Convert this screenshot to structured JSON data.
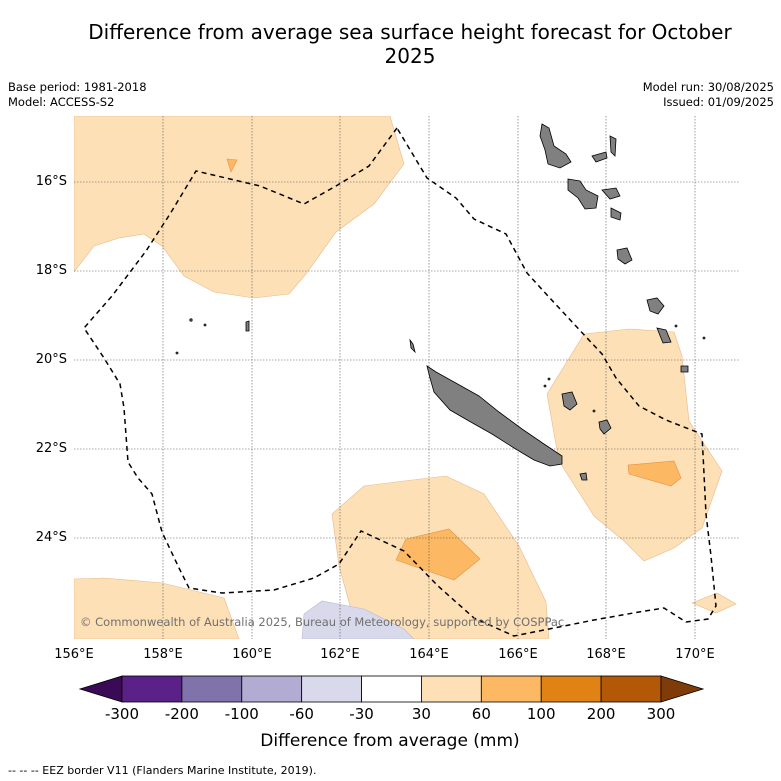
{
  "title": "Difference from average sea surface height forecast for October 2025",
  "info": {
    "base_period": "Base period: 1981-2018",
    "model": "Model: ACCESS-S2",
    "model_run": "Model run: 30/08/2025",
    "issued": "Issued: 01/09/2025"
  },
  "map": {
    "copyright": "© Commonwealth of Australia 2025, Bureau of Meteorology, supported by COSPPac",
    "lat_labels": [
      "16°S",
      "18°S",
      "20°S",
      "22°S",
      "24°S"
    ],
    "lon_labels": [
      "156°E",
      "158°E",
      "160°E",
      "162°E",
      "164°E",
      "166°E",
      "168°E",
      "170°E"
    ],
    "land_color": "#808080",
    "eez_line_style": "dashed black"
  },
  "colorbar": {
    "ticks": [
      "-300",
      "-200",
      "-100",
      "-60",
      "-30",
      "30",
      "60",
      "100",
      "200",
      "300"
    ],
    "colors": [
      "#3b0a57",
      "#5a2288",
      "#8073ac",
      "#b2abd2",
      "#d8daeb",
      "#ffffff",
      "#fee0b6",
      "#fdb863",
      "#e08214",
      "#b35806",
      "#7f3b08"
    ],
    "label": "Difference from average (mm)"
  },
  "footnote": "--  --  -- EEZ border V11 (Flanders Marine Institute, 2019)."
}
